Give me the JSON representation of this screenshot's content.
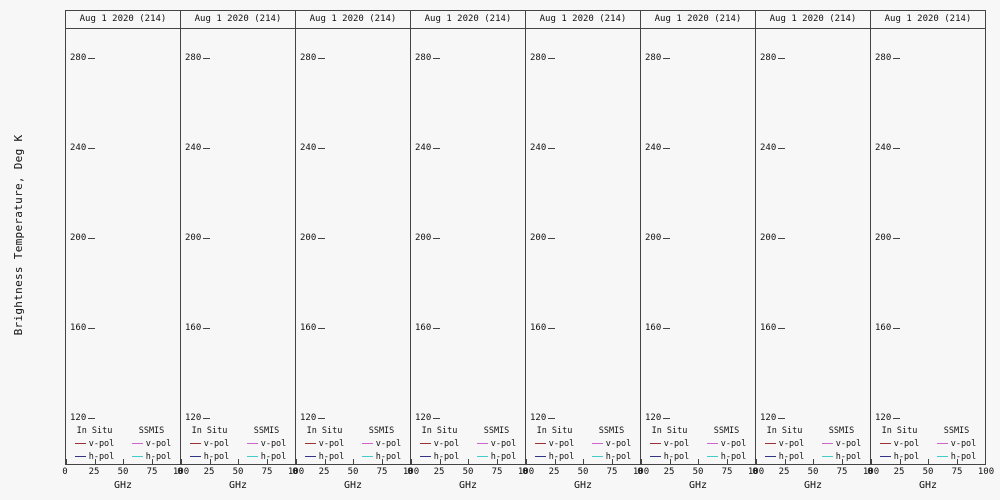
{
  "figure": {
    "y_axis_title": "Brightness Temperature, Deg K",
    "background_color": "#f7f7f7",
    "frame_color": "#444444"
  },
  "panel": {
    "title": "Aug 1 2020 (214)",
    "y_ticks": [
      "280",
      "240",
      "200",
      "160",
      "120"
    ],
    "x_ticks": [
      "0",
      "25",
      "50",
      "75",
      "100"
    ],
    "x_unit": "GHz",
    "legend": {
      "left_header": "In Situ",
      "right_header": "SSMIS",
      "rows": [
        {
          "label": "v-pol",
          "left_color": "#993333",
          "right_color": "#cc66cc"
        },
        {
          "label": "h-pol",
          "left_color": "#333388",
          "right_color": "#44cccc"
        }
      ]
    }
  },
  "panels": [
    {
      "title": "Aug 1 2020 (214)"
    },
    {
      "title": "Aug 1 2020 (214)"
    },
    {
      "title": "Aug 1 2020 (214)"
    },
    {
      "title": "Aug 1 2020 (214)"
    },
    {
      "title": "Aug 1 2020 (214)"
    },
    {
      "title": "Aug 1 2020 (214)"
    },
    {
      "title": "Aug 1 2020 (214)"
    },
    {
      "title": "Aug 1 2020 (214)"
    }
  ],
  "chart_data": {
    "type": "line",
    "layout": "8 side-by-side identical panels, shared y-axis title at far left, legend inside bottom of each panel",
    "panel_titles": [
      "Aug 1 2020 (214)",
      "Aug 1 2020 (214)",
      "Aug 1 2020 (214)",
      "Aug 1 2020 (214)",
      "Aug 1 2020 (214)",
      "Aug 1 2020 (214)",
      "Aug 1 2020 (214)",
      "Aug 1 2020 (214)"
    ],
    "xlabel": "GHz",
    "ylabel": "Brightness Temperature, Deg K",
    "xlim": [
      0,
      100
    ],
    "ylim": [
      100,
      300
    ],
    "x_ticks": [
      0,
      25,
      50,
      75,
      100
    ],
    "y_ticks": [
      120,
      160,
      200,
      240,
      280
    ],
    "grid": false,
    "legend_position": "bottom-inside",
    "series": [
      {
        "name": "In Situ v-pol",
        "color": "#993333",
        "x": [],
        "y": []
      },
      {
        "name": "In Situ h-pol",
        "color": "#333388",
        "x": [],
        "y": []
      },
      {
        "name": "SSMIS v-pol",
        "color": "#cc66cc",
        "x": [],
        "y": []
      },
      {
        "name": "SSMIS h-pol",
        "color": "#44cccc",
        "x": [],
        "y": []
      }
    ],
    "note": "Axes, tick labels and legends are drawn but no data curves are plotted in any panel"
  }
}
